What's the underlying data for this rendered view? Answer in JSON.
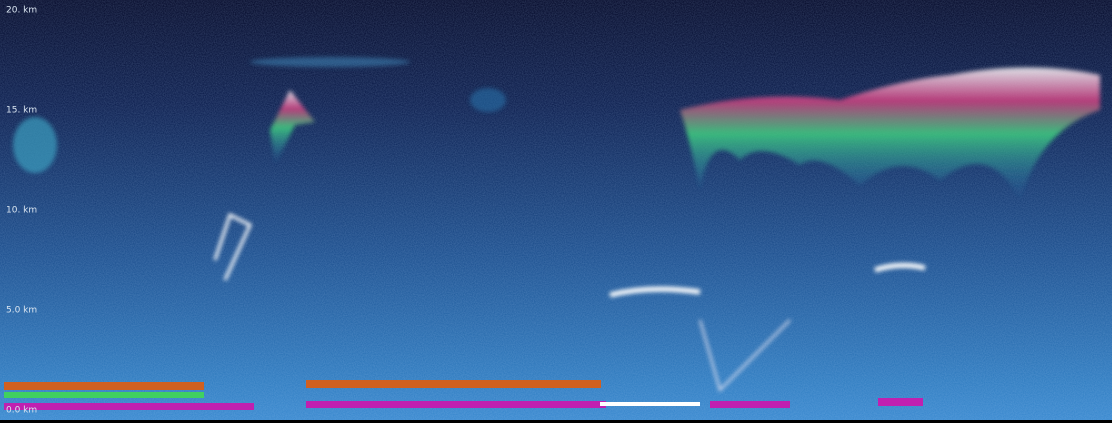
{
  "chart_data": {
    "type": "image",
    "ylim": [
      -0.65,
      20.5
    ],
    "yticks": [
      {
        "value": 20,
        "label": "20. km"
      },
      {
        "value": 15,
        "label": "15. km"
      },
      {
        "value": 10,
        "label": "10. km"
      },
      {
        "value": 5,
        "label": "5.0 km"
      },
      {
        "value": 0,
        "label": "0.0 km"
      }
    ]
  }
}
